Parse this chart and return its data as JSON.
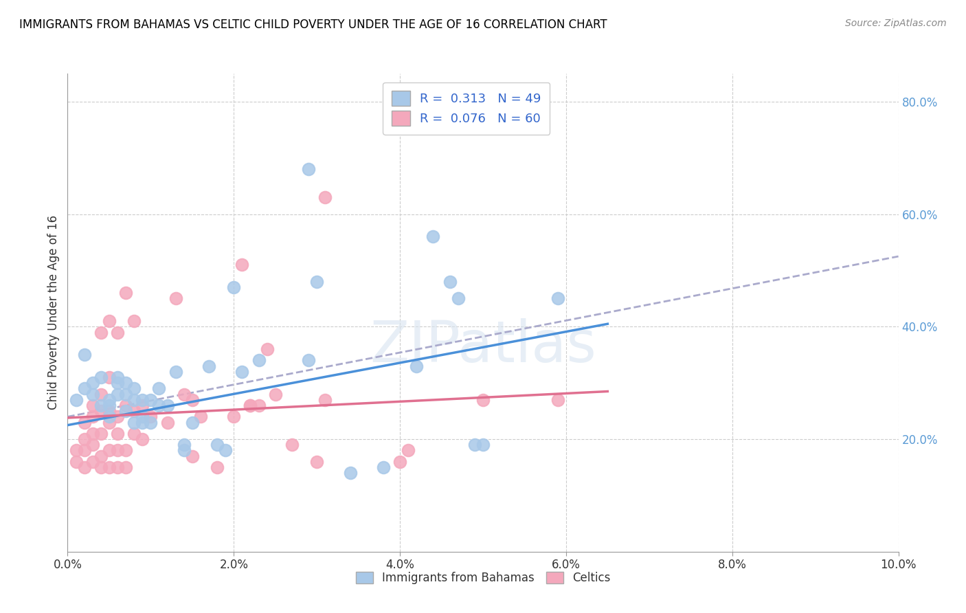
{
  "title": "IMMIGRANTS FROM BAHAMAS VS CELTIC CHILD POVERTY UNDER THE AGE OF 16 CORRELATION CHART",
  "source": "Source: ZipAtlas.com",
  "ylabel": "Child Poverty Under the Age of 16",
  "x_min": 0.0,
  "x_max": 0.1,
  "y_min": 0.0,
  "y_max": 0.85,
  "x_ticks": [
    0.0,
    0.02,
    0.04,
    0.06,
    0.08,
    0.1
  ],
  "x_tick_labels": [
    "0.0%",
    "2.0%",
    "4.0%",
    "6.0%",
    "8.0%",
    "10.0%"
  ],
  "y_ticks_right": [
    0.2,
    0.4,
    0.6,
    0.8
  ],
  "y_tick_labels_right": [
    "20.0%",
    "40.0%",
    "60.0%",
    "80.0%"
  ],
  "legend_label1": "Immigrants from Bahamas",
  "legend_label2": "Celtics",
  "color_blue": "#A8C8E8",
  "color_pink": "#F4A8BC",
  "trendline_blue": "#4A90D9",
  "trendline_pink": "#E07090",
  "trendline_dashed": "#AAAACC",
  "blue_scatter": [
    [
      0.001,
      0.27
    ],
    [
      0.002,
      0.29
    ],
    [
      0.002,
      0.35
    ],
    [
      0.003,
      0.3
    ],
    [
      0.003,
      0.28
    ],
    [
      0.004,
      0.26
    ],
    [
      0.004,
      0.31
    ],
    [
      0.005,
      0.26
    ],
    [
      0.005,
      0.24
    ],
    [
      0.005,
      0.27
    ],
    [
      0.006,
      0.28
    ],
    [
      0.006,
      0.3
    ],
    [
      0.006,
      0.31
    ],
    [
      0.007,
      0.28
    ],
    [
      0.007,
      0.3
    ],
    [
      0.007,
      0.25
    ],
    [
      0.008,
      0.29
    ],
    [
      0.008,
      0.27
    ],
    [
      0.008,
      0.23
    ],
    [
      0.009,
      0.24
    ],
    [
      0.009,
      0.27
    ],
    [
      0.009,
      0.23
    ],
    [
      0.01,
      0.23
    ],
    [
      0.01,
      0.27
    ],
    [
      0.011,
      0.26
    ],
    [
      0.011,
      0.29
    ],
    [
      0.012,
      0.26
    ],
    [
      0.013,
      0.32
    ],
    [
      0.014,
      0.19
    ],
    [
      0.014,
      0.18
    ],
    [
      0.015,
      0.23
    ],
    [
      0.017,
      0.33
    ],
    [
      0.018,
      0.19
    ],
    [
      0.019,
      0.18
    ],
    [
      0.02,
      0.47
    ],
    [
      0.021,
      0.32
    ],
    [
      0.023,
      0.34
    ],
    [
      0.029,
      0.34
    ],
    [
      0.03,
      0.48
    ],
    [
      0.034,
      0.14
    ],
    [
      0.038,
      0.15
    ],
    [
      0.042,
      0.33
    ],
    [
      0.044,
      0.56
    ],
    [
      0.046,
      0.48
    ],
    [
      0.047,
      0.45
    ],
    [
      0.049,
      0.19
    ],
    [
      0.05,
      0.19
    ],
    [
      0.059,
      0.45
    ],
    [
      0.029,
      0.68
    ]
  ],
  "pink_scatter": [
    [
      0.001,
      0.16
    ],
    [
      0.001,
      0.18
    ],
    [
      0.002,
      0.15
    ],
    [
      0.002,
      0.18
    ],
    [
      0.002,
      0.2
    ],
    [
      0.002,
      0.23
    ],
    [
      0.003,
      0.16
    ],
    [
      0.003,
      0.19
    ],
    [
      0.003,
      0.21
    ],
    [
      0.003,
      0.24
    ],
    [
      0.003,
      0.26
    ],
    [
      0.004,
      0.15
    ],
    [
      0.004,
      0.17
    ],
    [
      0.004,
      0.21
    ],
    [
      0.004,
      0.25
    ],
    [
      0.004,
      0.28
    ],
    [
      0.004,
      0.39
    ],
    [
      0.005,
      0.15
    ],
    [
      0.005,
      0.18
    ],
    [
      0.005,
      0.23
    ],
    [
      0.005,
      0.25
    ],
    [
      0.005,
      0.31
    ],
    [
      0.005,
      0.41
    ],
    [
      0.006,
      0.15
    ],
    [
      0.006,
      0.18
    ],
    [
      0.006,
      0.21
    ],
    [
      0.006,
      0.24
    ],
    [
      0.006,
      0.39
    ],
    [
      0.007,
      0.15
    ],
    [
      0.007,
      0.18
    ],
    [
      0.007,
      0.26
    ],
    [
      0.007,
      0.46
    ],
    [
      0.008,
      0.25
    ],
    [
      0.008,
      0.21
    ],
    [
      0.008,
      0.41
    ],
    [
      0.009,
      0.26
    ],
    [
      0.009,
      0.2
    ],
    [
      0.01,
      0.24
    ],
    [
      0.012,
      0.23
    ],
    [
      0.013,
      0.45
    ],
    [
      0.014,
      0.28
    ],
    [
      0.015,
      0.27
    ],
    [
      0.015,
      0.17
    ],
    [
      0.016,
      0.24
    ],
    [
      0.018,
      0.15
    ],
    [
      0.02,
      0.24
    ],
    [
      0.022,
      0.26
    ],
    [
      0.022,
      0.26
    ],
    [
      0.023,
      0.26
    ],
    [
      0.025,
      0.28
    ],
    [
      0.03,
      0.16
    ],
    [
      0.031,
      0.27
    ],
    [
      0.04,
      0.16
    ],
    [
      0.041,
      0.18
    ],
    [
      0.05,
      0.27
    ],
    [
      0.059,
      0.27
    ],
    [
      0.021,
      0.51
    ],
    [
      0.024,
      0.36
    ],
    [
      0.027,
      0.19
    ],
    [
      0.031,
      0.63
    ]
  ],
  "blue_trend_x": [
    0.0,
    0.065
  ],
  "blue_trend_y": [
    0.225,
    0.405
  ],
  "pink_trend_x": [
    0.0,
    0.065
  ],
  "pink_trend_y": [
    0.238,
    0.285
  ],
  "dashed_trend_x": [
    0.0,
    0.1
  ],
  "dashed_trend_y": [
    0.24,
    0.525
  ]
}
